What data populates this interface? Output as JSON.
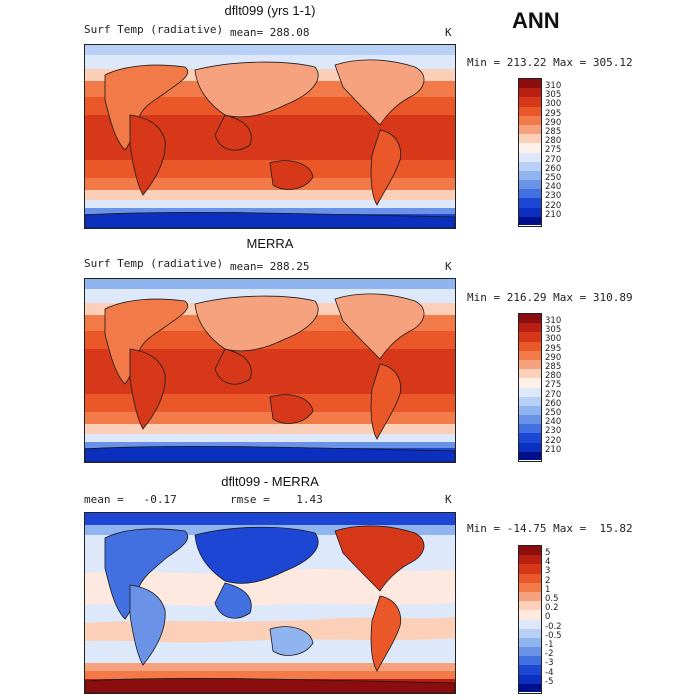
{
  "season": "ANN",
  "panels": [
    {
      "title": "dflt099 (yrs 1-1)",
      "left_label": "Surf Temp (radiative)",
      "center_label": "mean= 288.08",
      "unit": "K",
      "minmax": "Min = 213.22 Max = 305.12",
      "colorbar": {
        "labels": [
          "310",
          "305",
          "300",
          "295",
          "290",
          "285",
          "280",
          "275",
          "270",
          "260",
          "250",
          "240",
          "230",
          "220",
          "210"
        ],
        "colors": [
          "#8b0d0d",
          "#b81f12",
          "#d8381a",
          "#ea5728",
          "#f27a48",
          "#f6a27e",
          "#fbcfb8",
          "#fdf0e8",
          "#dde8fa",
          "#b9d0f6",
          "#90b4ef",
          "#6a93e8",
          "#4270e0",
          "#1c46d3",
          "#0b2fbf",
          "#000f8c"
        ]
      }
    },
    {
      "title": "MERRA",
      "left_label": "Surf Temp (radiative)",
      "center_label": "mean= 288.25",
      "unit": "K",
      "minmax": "Min = 216.29 Max = 310.89",
      "colorbar": {
        "labels": [
          "310",
          "305",
          "300",
          "295",
          "290",
          "285",
          "280",
          "275",
          "270",
          "260",
          "250",
          "240",
          "230",
          "220",
          "210"
        ],
        "colors": [
          "#8b0d0d",
          "#b81f12",
          "#d8381a",
          "#ea5728",
          "#f27a48",
          "#f6a27e",
          "#fbcfb8",
          "#fdf0e8",
          "#dde8fa",
          "#b9d0f6",
          "#90b4ef",
          "#6a93e8",
          "#4270e0",
          "#1c46d3",
          "#0b2fbf",
          "#000f8c"
        ]
      }
    },
    {
      "title": "dflt099 - MERRA",
      "left_label": "mean =   -0.17",
      "center_label": "rmse =    1.43",
      "unit": "K",
      "minmax": "Min = -14.75 Max =  15.82",
      "colorbar": {
        "labels": [
          "5",
          "4",
          "3",
          "2",
          "1",
          "0.5",
          "0.2",
          "0",
          "-0.2",
          "-0.5",
          "-1",
          "-2",
          "-3",
          "-4",
          "-5"
        ],
        "colors": [
          "#8b0d0d",
          "#b81f12",
          "#d8381a",
          "#ea5728",
          "#f27a48",
          "#f6a27e",
          "#fbcfb8",
          "#fde9df",
          "#dde8fa",
          "#b9d0f6",
          "#90b4ef",
          "#6a93e8",
          "#4270e0",
          "#1c46d3",
          "#0b2fbf",
          "#000f8c"
        ]
      }
    }
  ]
}
